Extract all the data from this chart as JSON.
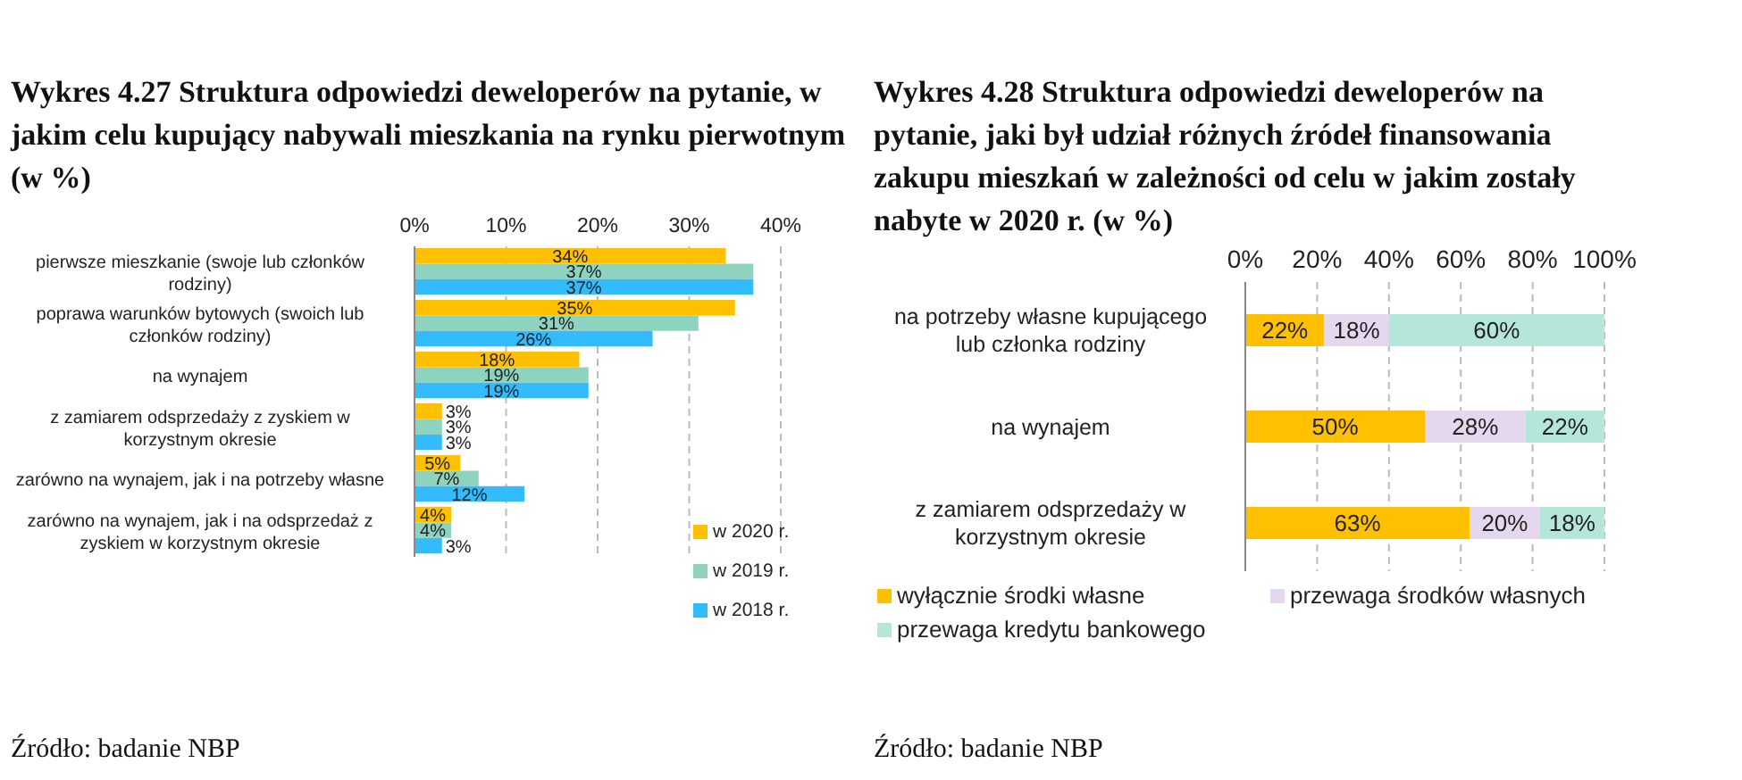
{
  "chart_data": [
    {
      "type": "bar",
      "orientation": "horizontal",
      "title": "Wykres 4.27 Struktura odpowiedzi deweloperów na pytanie, w jakim celu kupujący nabywali mieszkania na rynku pierwotnym (w %)",
      "categories": [
        "pierwsze mieszkanie (swoje lub członków rodziny)",
        "poprawa warunków bytowych (swoich lub członków rodziny)",
        "na wynajem",
        "z zamiarem odsprzedaży z zyskiem w korzystnym okresie",
        "zarówno na wynajem, jak i na potrzeby własne",
        "zarówno na wynajem, jak i na odsprzedaż z zyskiem w korzystnym okresie"
      ],
      "series": [
        {
          "name": "w 2020 r.",
          "color": "#ffc000",
          "values": [
            34,
            35,
            18,
            3,
            5,
            4
          ],
          "value_labels": [
            "34%",
            "35%",
            "18%",
            "3%",
            "5%",
            "4%"
          ]
        },
        {
          "name": "w 2019 r.",
          "color": "#8ed3c0",
          "values": [
            37,
            31,
            19,
            3,
            7,
            4
          ],
          "value_labels": [
            "37%",
            "31%",
            "19%",
            "3%",
            "7%",
            "4%"
          ]
        },
        {
          "name": "w 2018 r.",
          "color": "#33bbff",
          "values": [
            37,
            26,
            19,
            3,
            12,
            3
          ],
          "value_labels": [
            "37%",
            "26%",
            "19%",
            "3%",
            "12%",
            "3%"
          ]
        }
      ],
      "xlim": [
        0,
        40
      ],
      "xticks": [
        {
          "value": 0,
          "label": "0%"
        },
        {
          "value": 10,
          "label": "10%"
        },
        {
          "value": 20,
          "label": "20%"
        },
        {
          "value": 30,
          "label": "30%"
        },
        {
          "value": 40,
          "label": "40%"
        }
      ],
      "grid": "x",
      "legend": "bottom right",
      "annotations": [
        "Źródło: badanie NBP"
      ]
    },
    {
      "type": "bar",
      "orientation": "horizontal",
      "stacked": true,
      "title": "Wykres 4.28 Struktura odpowiedzi deweloperów na pytanie, jaki był udział różnych źródeł finansowania zakupu mieszkań w zależności od celu w jakim zostały nabyte w 2020 r. (w %)",
      "categories": [
        "na potrzeby własne kupującego lub członka rodziny",
        "na wynajem",
        "z zamiarem odsprzedaży w korzystnym okresie"
      ],
      "series": [
        {
          "name": "wyłącznie środki własne",
          "color": "#ffc000",
          "values": [
            22,
            50,
            62.5
          ],
          "value_labels": [
            "22%",
            "50%",
            "63%"
          ]
        },
        {
          "name": "przewaga środków własnych",
          "color": "#e4d7ee",
          "values": [
            18,
            28,
            19.5
          ],
          "value_labels": [
            "18%",
            "28%",
            "20%"
          ]
        },
        {
          "name": "przewaga kredytu bankowego",
          "color": "#b4e6d9",
          "values": [
            60,
            22,
            18
          ],
          "value_labels": [
            "60%",
            "22%",
            "18%"
          ]
        }
      ],
      "xlim": [
        0,
        100
      ],
      "xticks": [
        {
          "value": 0,
          "label": "0%"
        },
        {
          "value": 20,
          "label": "20%"
        },
        {
          "value": 40,
          "label": "40%"
        },
        {
          "value": 60,
          "label": "60%"
        },
        {
          "value": 80,
          "label": "80%"
        },
        {
          "value": 100,
          "label": "100%"
        }
      ],
      "grid": "x",
      "legend": "bottom",
      "annotations": [
        "Źródło: badanie NBP"
      ]
    }
  ]
}
